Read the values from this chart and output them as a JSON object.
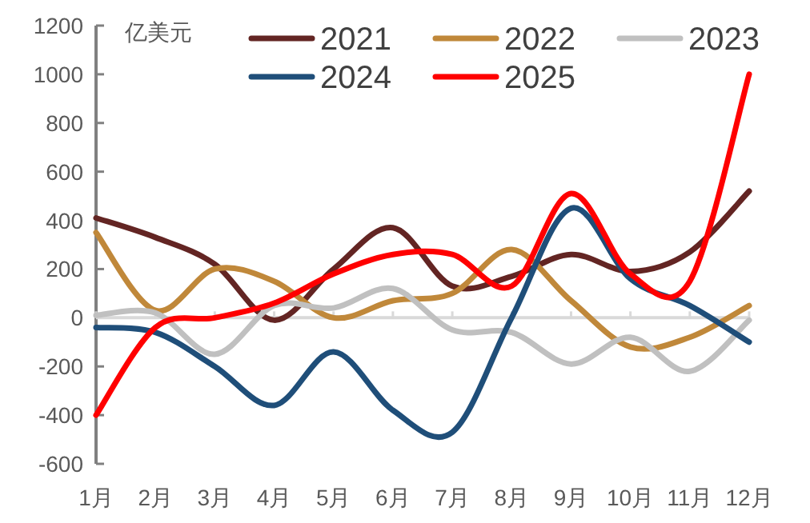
{
  "chart_data": {
    "type": "line",
    "ylabel": "亿美元",
    "categories": [
      "1月",
      "2月",
      "3月",
      "4月",
      "5月",
      "6月",
      "7月",
      "8月",
      "9月",
      "10月",
      "11月",
      "12月"
    ],
    "series": [
      {
        "name": "2021",
        "color": "#632523",
        "values": [
          410,
          330,
          220,
          -10,
          200,
          370,
          130,
          170,
          260,
          190,
          270,
          520
        ]
      },
      {
        "name": "2022",
        "color": "#c0883a",
        "values": [
          350,
          30,
          200,
          150,
          0,
          70,
          100,
          280,
          70,
          -120,
          -80,
          50
        ]
      },
      {
        "name": "2023",
        "color": "#c0c0c0",
        "values": [
          10,
          20,
          -150,
          50,
          40,
          120,
          -50,
          -60,
          -190,
          -80,
          -220,
          -10
        ]
      },
      {
        "name": "2024",
        "color": "#1f4e79",
        "values": [
          -40,
          -60,
          -200,
          -360,
          -140,
          -380,
          -470,
          0,
          450,
          160,
          50,
          -100
        ]
      },
      {
        "name": "2025",
        "color": "#ff0000",
        "values": [
          -400,
          -40,
          0,
          60,
          180,
          260,
          260,
          130,
          510,
          180,
          150,
          1000
        ]
      }
    ],
    "ylim": [
      -600,
      1200
    ],
    "yticks": [
      -600,
      -400,
      -200,
      0,
      200,
      400,
      600,
      800,
      1000,
      1200
    ],
    "legend": "top"
  }
}
